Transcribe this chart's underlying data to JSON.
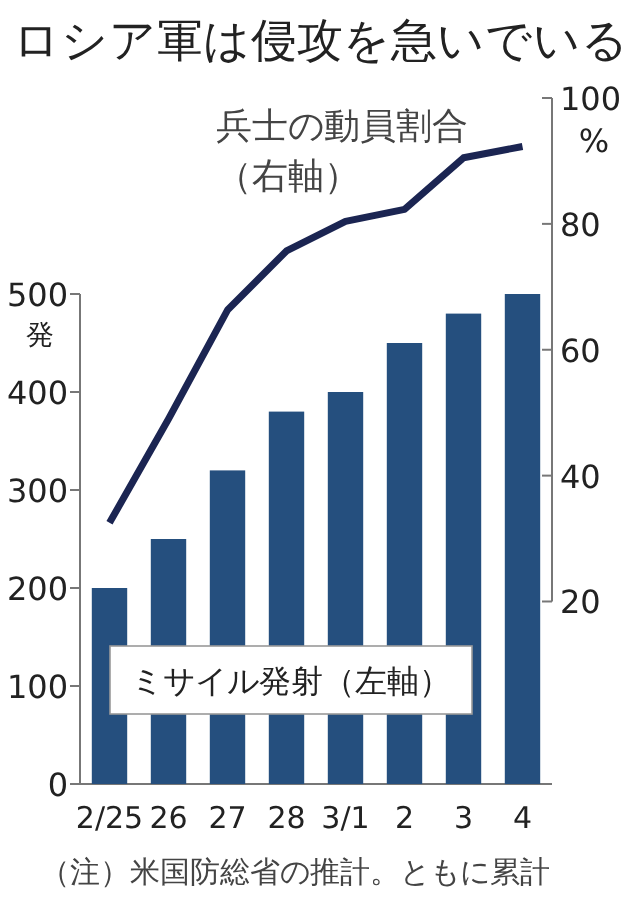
{
  "chart_data": {
    "type": "bar",
    "title": "ロシア軍は侵攻を急いでいる",
    "categories": [
      "2/25",
      "26",
      "27",
      "28",
      "3/1",
      "2",
      "3",
      "4"
    ],
    "series": [
      {
        "name": "ミサイル発射（左軸）",
        "color": "#254f7e",
        "values": [
          200,
          250,
          320,
          380,
          400,
          450,
          480,
          500
        ]
      },
      {
        "name": "兵士の動員割合（右軸）",
        "type": "line",
        "axis": "y2",
        "color": "#1b2552",
        "values": [
          32.5,
          49,
          66.3,
          75.7,
          80.4,
          82.3,
          90.5,
          92.3
        ]
      }
    ],
    "ylabel": "発",
    "y2label": "%",
    "ylim": [
      0,
      700
    ],
    "yticks": [
      0,
      100,
      200,
      300,
      400,
      500
    ],
    "y2lim": [
      -9,
      100
    ],
    "y2ticks": [
      20,
      40,
      60,
      80,
      100
    ],
    "annotations": [
      "（注）米国防総省の推計。ともに累計"
    ]
  }
}
